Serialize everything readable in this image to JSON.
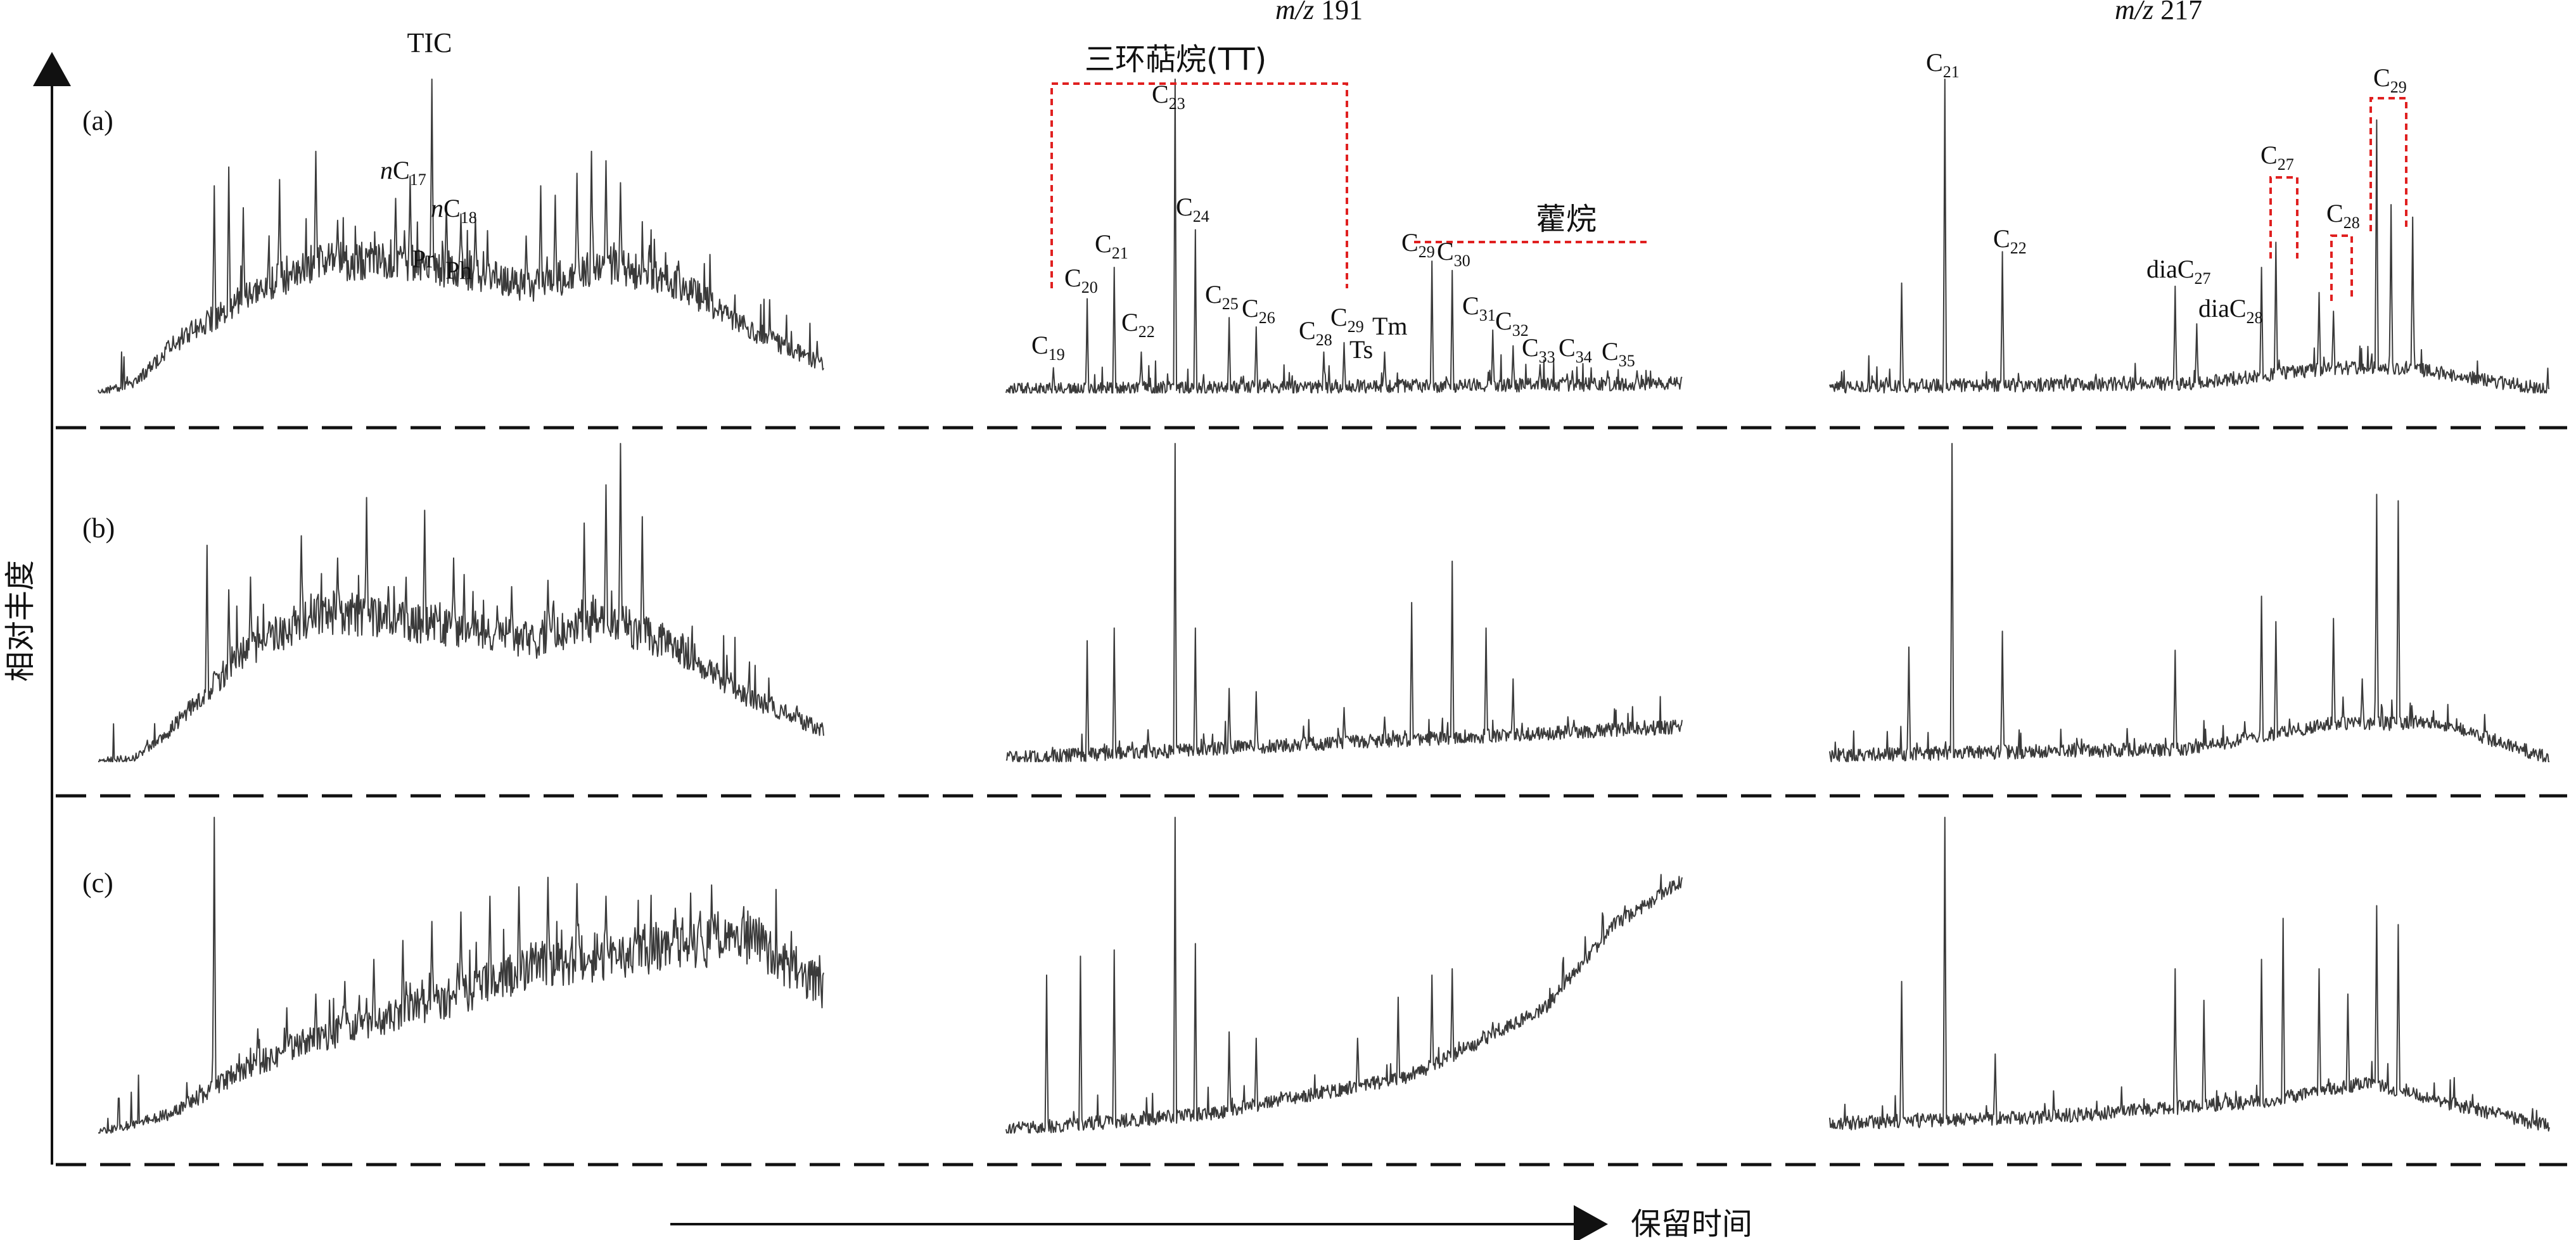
{
  "panels": [
    "(a)",
    "(b)",
    "(c)"
  ],
  "y_axis_label": "相对丰度",
  "x_axis_label": "保留时间",
  "columns": [
    {
      "id": "tic",
      "header_prefix": "",
      "header_suffix": "TIC"
    },
    {
      "id": "mz191",
      "header_prefix": "m/z",
      "header_suffix": " 191"
    },
    {
      "id": "mz217",
      "header_prefix": "m/z",
      "header_suffix": " 217"
    }
  ],
  "group_labels": {
    "tricyclic": "三环萜烷(TT)",
    "hopane": "藿烷"
  },
  "peak_labels": {
    "tic": [
      {
        "pre": "n",
        "base": "C",
        "sub": "17"
      },
      {
        "pre": "n",
        "base": "C",
        "sub": "18"
      },
      {
        "pre": "",
        "base": "Pr",
        "sub": ""
      },
      {
        "pre": "",
        "base": "Ph",
        "sub": ""
      }
    ],
    "mz191": [
      {
        "base": "C",
        "sub": "19"
      },
      {
        "base": "C",
        "sub": "20"
      },
      {
        "base": "C",
        "sub": "21"
      },
      {
        "base": "C",
        "sub": "22"
      },
      {
        "base": "C",
        "sub": "23"
      },
      {
        "base": "C",
        "sub": "24"
      },
      {
        "base": "C",
        "sub": "25"
      },
      {
        "base": "C",
        "sub": "26"
      },
      {
        "base": "C",
        "sub": "28"
      },
      {
        "base": "C",
        "sub": "29"
      },
      {
        "base": "Ts",
        "sub": ""
      },
      {
        "base": "Tm",
        "sub": ""
      },
      {
        "base": "C",
        "sub": "29"
      },
      {
        "base": "C",
        "sub": "30"
      },
      {
        "base": "C",
        "sub": "31"
      },
      {
        "base": "C",
        "sub": "32"
      },
      {
        "base": "C",
        "sub": "33"
      },
      {
        "base": "C",
        "sub": "34"
      },
      {
        "base": "C",
        "sub": "35"
      }
    ],
    "mz217": [
      {
        "base": "C",
        "sub": "21"
      },
      {
        "base": "C",
        "sub": "22"
      },
      {
        "base": "diaC",
        "sub": "27"
      },
      {
        "base": "diaC",
        "sub": "28"
      },
      {
        "base": "C",
        "sub": "27"
      },
      {
        "base": "C",
        "sub": "28"
      },
      {
        "base": "C",
        "sub": "29"
      }
    ]
  },
  "colors": {
    "trace": "#3a3a3a",
    "bracket": "#e02020",
    "axis": "#111111"
  },
  "chart_data": {
    "type": "line",
    "title": "",
    "xlabel": "保留时间",
    "ylabel": "相对丰度",
    "grid": false,
    "note_units": "relative abundance, arbitrary units (0 = baseline, 100 = tallest peak in each trace)",
    "traces": {
      "a": {
        "tic": {
          "hump": [
            [
              0,
              0
            ],
            [
              0.05,
              3
            ],
            [
              0.1,
              15
            ],
            [
              0.2,
              30
            ],
            [
              0.3,
              42
            ],
            [
              0.4,
              42
            ],
            [
              0.5,
              39
            ],
            [
              0.6,
              34
            ],
            [
              0.7,
              41
            ],
            [
              0.8,
              35
            ],
            [
              0.9,
              20
            ],
            [
              1,
              9
            ]
          ],
          "peaks": [
            [
              0.16,
              66
            ],
            [
              0.18,
              72
            ],
            [
              0.2,
              59
            ],
            [
              0.25,
              68
            ],
            [
              0.3,
              77
            ],
            [
              0.33,
              55
            ],
            [
              0.41,
              62
            ],
            [
              0.43,
              69
            ],
            [
              0.46,
              100
            ],
            [
              0.48,
              60
            ],
            [
              0.5,
              57
            ],
            [
              0.52,
              56
            ],
            [
              0.59,
              50
            ],
            [
              0.61,
              66
            ],
            [
              0.63,
              63
            ],
            [
              0.66,
              70
            ],
            [
              0.68,
              77
            ],
            [
              0.7,
              74
            ],
            [
              0.72,
              67
            ],
            [
              0.76,
              47
            ],
            [
              0.8,
              42
            ]
          ]
        },
        "mz191": {
          "hump": [
            [
              0,
              1
            ],
            [
              0.5,
              2
            ],
            [
              1,
              3
            ]
          ],
          "peaks": [
            [
              0.07,
              8
            ],
            [
              0.12,
              30
            ],
            [
              0.16,
              40
            ],
            [
              0.2,
              13
            ],
            [
              0.25,
              100
            ],
            [
              0.28,
              52
            ],
            [
              0.33,
              24
            ],
            [
              0.37,
              21
            ],
            [
              0.47,
              13
            ],
            [
              0.5,
              16
            ],
            [
              0.56,
              13
            ],
            [
              0.63,
              42
            ],
            [
              0.66,
              39
            ],
            [
              0.72,
              20
            ],
            [
              0.75,
              15
            ],
            [
              0.79,
              9
            ],
            [
              0.83,
              6
            ],
            [
              0.89,
              7
            ],
            [
              0.95,
              5
            ]
          ]
        },
        "mz217": {
          "hump": [
            [
              0,
              2
            ],
            [
              0.5,
              3
            ],
            [
              0.7,
              8
            ],
            [
              0.8,
              8
            ],
            [
              1,
              1
            ]
          ],
          "peaks": [
            [
              0.1,
              35
            ],
            [
              0.16,
              100
            ],
            [
              0.24,
              45
            ],
            [
              0.48,
              34
            ],
            [
              0.51,
              22
            ],
            [
              0.6,
              40
            ],
            [
              0.62,
              48
            ],
            [
              0.68,
              32
            ],
            [
              0.7,
              26
            ],
            [
              0.76,
              87
            ],
            [
              0.78,
              60
            ],
            [
              0.81,
              56
            ]
          ]
        }
      },
      "b": {
        "tic": {
          "hump": [
            [
              0,
              0
            ],
            [
              0.05,
              1
            ],
            [
              0.1,
              10
            ],
            [
              0.2,
              34
            ],
            [
              0.3,
              47
            ],
            [
              0.4,
              45
            ],
            [
              0.5,
              42
            ],
            [
              0.6,
              38
            ],
            [
              0.7,
              45
            ],
            [
              0.8,
              36
            ],
            [
              0.9,
              20
            ],
            [
              1,
              10
            ]
          ],
          "peaks": [
            [
              0.15,
              68
            ],
            [
              0.18,
              54
            ],
            [
              0.21,
              58
            ],
            [
              0.28,
              71
            ],
            [
              0.33,
              64
            ],
            [
              0.37,
              83
            ],
            [
              0.4,
              55
            ],
            [
              0.45,
              79
            ],
            [
              0.49,
              64
            ],
            [
              0.57,
              55
            ],
            [
              0.62,
              57
            ],
            [
              0.67,
              75
            ],
            [
              0.7,
              87
            ],
            [
              0.72,
              100
            ],
            [
              0.75,
              77
            ],
            [
              0.78,
              42
            ]
          ]
        },
        "mz191": {
          "hump": [
            [
              0,
              1
            ],
            [
              0.5,
              6
            ],
            [
              1,
              11
            ]
          ],
          "peaks": [
            [
              0.12,
              38
            ],
            [
              0.16,
              42
            ],
            [
              0.21,
              10
            ],
            [
              0.25,
              100
            ],
            [
              0.28,
              42
            ],
            [
              0.33,
              23
            ],
            [
              0.37,
              22
            ],
            [
              0.5,
              17
            ],
            [
              0.56,
              14
            ],
            [
              0.6,
              50
            ],
            [
              0.66,
              63
            ],
            [
              0.71,
              42
            ],
            [
              0.75,
              26
            ],
            [
              0.84,
              13
            ],
            [
              0.9,
              12
            ]
          ]
        },
        "mz217": {
          "hump": [
            [
              0,
              2
            ],
            [
              0.5,
              4
            ],
            [
              0.7,
              12
            ],
            [
              0.85,
              12
            ],
            [
              1,
              1
            ]
          ],
          "peaks": [
            [
              0.11,
              36
            ],
            [
              0.17,
              100
            ],
            [
              0.24,
              41
            ],
            [
              0.48,
              35
            ],
            [
              0.6,
              52
            ],
            [
              0.62,
              44
            ],
            [
              0.7,
              45
            ],
            [
              0.74,
              26
            ],
            [
              0.76,
              84
            ],
            [
              0.79,
              82
            ]
          ]
        }
      },
      "c": {
        "tic": {
          "hump": [
            [
              0,
              0
            ],
            [
              0.1,
              6
            ],
            [
              0.2,
              20
            ],
            [
              0.3,
              30
            ],
            [
              0.4,
              37
            ],
            [
              0.5,
              44
            ],
            [
              0.6,
              53
            ],
            [
              0.7,
              56
            ],
            [
              0.8,
              60
            ],
            [
              0.9,
              62
            ],
            [
              0.94,
              55
            ],
            [
              1,
              46
            ]
          ],
          "peaks": [
            [
              0.16,
              100
            ],
            [
              0.22,
              33
            ],
            [
              0.26,
              36
            ],
            [
              0.3,
              44
            ],
            [
              0.34,
              48
            ],
            [
              0.38,
              55
            ],
            [
              0.42,
              61
            ],
            [
              0.46,
              67
            ],
            [
              0.5,
              70
            ],
            [
              0.54,
              75
            ],
            [
              0.58,
              78
            ],
            [
              0.62,
              81
            ],
            [
              0.66,
              79
            ],
            [
              0.7,
              75
            ],
            [
              0.74,
              65
            ],
            [
              0.78,
              62
            ],
            [
              0.82,
              58
            ],
            [
              0.86,
              52
            ],
            [
              0.9,
              48
            ]
          ]
        },
        "mz191": {
          "hump": [
            [
              0,
              1
            ],
            [
              0.3,
              6
            ],
            [
              0.6,
              18
            ],
            [
              0.8,
              40
            ],
            [
              0.9,
              66
            ],
            [
              1,
              80
            ]
          ],
          "peaks": [
            [
              0.06,
              50
            ],
            [
              0.11,
              56
            ],
            [
              0.16,
              58
            ],
            [
              0.25,
              100
            ],
            [
              0.28,
              60
            ],
            [
              0.33,
              32
            ],
            [
              0.37,
              30
            ],
            [
              0.52,
              30
            ],
            [
              0.58,
              43
            ],
            [
              0.63,
              50
            ],
            [
              0.66,
              52
            ],
            [
              0.72,
              35
            ]
          ]
        },
        "mz217": {
          "hump": [
            [
              0,
              3
            ],
            [
              0.3,
              5
            ],
            [
              0.6,
              10
            ],
            [
              0.75,
              16
            ],
            [
              0.85,
              10
            ],
            [
              1,
              2
            ]
          ],
          "peaks": [
            [
              0.1,
              48
            ],
            [
              0.16,
              100
            ],
            [
              0.23,
              25
            ],
            [
              0.48,
              52
            ],
            [
              0.52,
              42
            ],
            [
              0.6,
              55
            ],
            [
              0.63,
              68
            ],
            [
              0.68,
              52
            ],
            [
              0.72,
              44
            ],
            [
              0.76,
              72
            ],
            [
              0.79,
              66
            ]
          ]
        }
      }
    }
  }
}
